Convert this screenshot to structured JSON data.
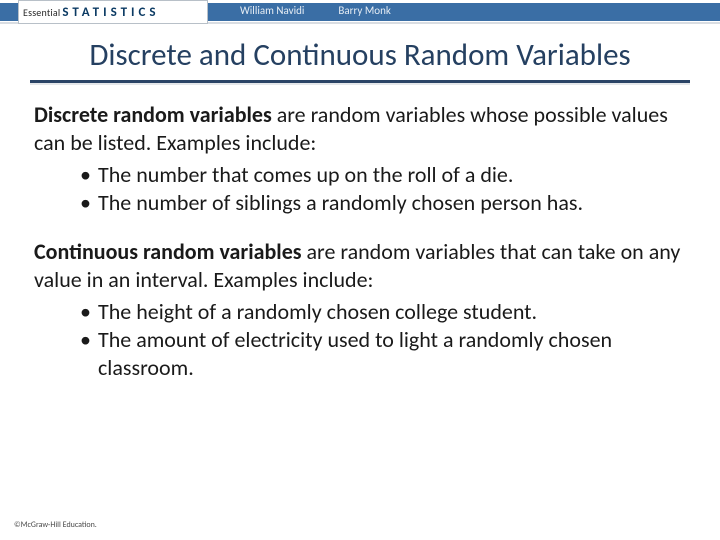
{
  "banner": {
    "book_essential": "Essential",
    "book_stats": "STATISTICS",
    "authors": [
      "William Navidi",
      "Barry Monk"
    ],
    "bar_color": "#3a6ea5"
  },
  "title": {
    "text": "Discrete and Continuous Random Variables",
    "color": "#254061",
    "underline_color": "#2a4466"
  },
  "sections": [
    {
      "lead_bold": "Discrete random variables",
      "lead_rest": " are random variables whose possible values can be listed. Examples include:",
      "bullets": [
        "The number that comes up on the roll of a die.",
        "The number of siblings a randomly chosen person has."
      ]
    },
    {
      "lead_bold": "Continuous random variables",
      "lead_rest": " are random variables that can take on any value in an interval. Examples include:",
      "bullets": [
        "The height of a randomly chosen college student.",
        "The amount of electricity used to light a randomly chosen classroom."
      ]
    }
  ],
  "footer": {
    "copyright": "©McGraw-Hill Education."
  },
  "style": {
    "body_fontsize": 22,
    "body_color": "#1a1a1a",
    "background": "#ffffff"
  }
}
